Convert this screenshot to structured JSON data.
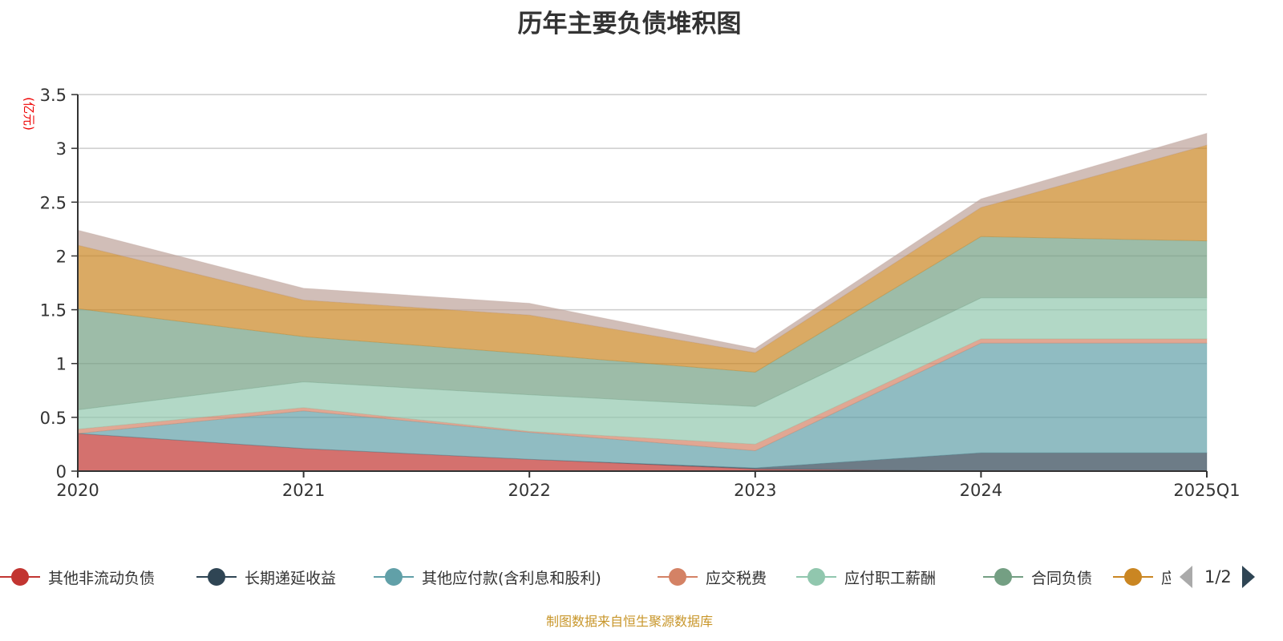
{
  "chart_data": {
    "type": "area",
    "stacked": true,
    "title": "历年主要负债堆积图",
    "ylabel": "(亿元)",
    "categories": [
      "2020",
      "2021",
      "2022",
      "2023",
      "2024",
      "2025Q1"
    ],
    "ylim": [
      0,
      3.5
    ],
    "yticks": [
      "0",
      "0.5",
      "1",
      "1.5",
      "2",
      "2.5",
      "3",
      "3.5"
    ],
    "grid": true,
    "legend_position": "bottom",
    "series": [
      {
        "name": "其他非流动负债",
        "color": "#c23531",
        "values": [
          0.35,
          0.21,
          0.11,
          0.02,
          0,
          0
        ]
      },
      {
        "name": "长期递延收益",
        "color": "#2f4554",
        "values": [
          0,
          0,
          0,
          0.01,
          0.17,
          0.17
        ]
      },
      {
        "name": "其他应付款(含利息和股利)",
        "color": "#61a0a8",
        "values": [
          0,
          0.35,
          0.25,
          0.16,
          1.02,
          1.02
        ]
      },
      {
        "name": "应交税费",
        "color": "#d48265",
        "values": [
          0.04,
          0.03,
          0.01,
          0.06,
          0.04,
          0.04
        ]
      },
      {
        "name": "应付职工薪酬",
        "color": "#91c7ae",
        "values": [
          0.18,
          0.24,
          0.34,
          0.35,
          0.38,
          0.38
        ]
      },
      {
        "name": "合同负债",
        "color": "#749f83",
        "values": [
          0.94,
          0.42,
          0.38,
          0.32,
          0.57,
          0.53
        ]
      },
      {
        "name": "应",
        "color": "#ca8622",
        "values": [
          0.59,
          0.34,
          0.36,
          0.18,
          0.27,
          0.89
        ]
      },
      {
        "color": "#bda29a",
        "values": [
          0.14,
          0.11,
          0.11,
          0.04,
          0.08,
          0.11
        ]
      }
    ]
  },
  "legend": {
    "page": "1/2"
  },
  "footer": "制图数据来自恒生聚源数据库"
}
